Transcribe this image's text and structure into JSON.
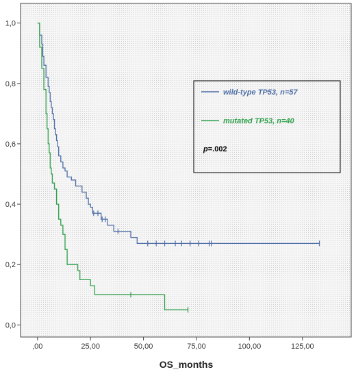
{
  "chart_data": {
    "type": "line",
    "subtype": "kaplan-meier",
    "xlabel": "OS_months",
    "ylabel": "",
    "xlim": [
      -8,
      148
    ],
    "ylim": [
      -0.04,
      1.065
    ],
    "x_ticks": [
      0,
      25,
      50,
      75,
      100,
      125
    ],
    "x_tick_labels": [
      ",00",
      "25,00",
      "50,00",
      "75,00",
      "100,00",
      "125,00"
    ],
    "y_ticks": [
      0,
      0.2,
      0.4,
      0.6,
      0.8,
      1.0
    ],
    "y_tick_labels": [
      "0,0",
      "0,2",
      "0,4",
      "0,6",
      "0,8",
      "1,0"
    ],
    "grid": false,
    "legend_position": "top-right",
    "pvalue_prefix": "p",
    "pvalue_suffix": "=.002",
    "series": [
      {
        "name_prefix": "wild-type ",
        "name_gene": "TP53",
        "name_suffix": ", n=57",
        "color": "#4f6fa8",
        "steps": [
          [
            0,
            1.0
          ],
          [
            1,
            0.96
          ],
          [
            2,
            0.93
          ],
          [
            2.5,
            0.89
          ],
          [
            3,
            0.86
          ],
          [
            4,
            0.82
          ],
          [
            5,
            0.79
          ],
          [
            5.5,
            0.77
          ],
          [
            6,
            0.74
          ],
          [
            6.5,
            0.72
          ],
          [
            7,
            0.7
          ],
          [
            7.5,
            0.68
          ],
          [
            8,
            0.65
          ],
          [
            8.5,
            0.63
          ],
          [
            9,
            0.61
          ],
          [
            9.5,
            0.59
          ],
          [
            10,
            0.56
          ],
          [
            11,
            0.54
          ],
          [
            12,
            0.52
          ],
          [
            13,
            0.51
          ],
          [
            14,
            0.49
          ],
          [
            16,
            0.48
          ],
          [
            18,
            0.46
          ],
          [
            21,
            0.44
          ],
          [
            23,
            0.42
          ],
          [
            24,
            0.4
          ],
          [
            25,
            0.39
          ],
          [
            26,
            0.37
          ],
          [
            30,
            0.35
          ],
          [
            33,
            0.33
          ],
          [
            36,
            0.31
          ],
          [
            44,
            0.29
          ],
          [
            47,
            0.27
          ],
          [
            133,
            0.27
          ]
        ],
        "censored": [
          [
            26.5,
            0.37
          ],
          [
            28.5,
            0.37
          ],
          [
            30.5,
            0.35
          ],
          [
            32,
            0.35
          ],
          [
            38,
            0.31
          ],
          [
            52,
            0.27
          ],
          [
            56,
            0.27
          ],
          [
            60,
            0.27
          ],
          [
            65,
            0.27
          ],
          [
            68,
            0.27
          ],
          [
            72,
            0.27
          ],
          [
            76,
            0.27
          ],
          [
            81,
            0.27
          ],
          [
            82,
            0.27
          ],
          [
            133,
            0.27
          ]
        ]
      },
      {
        "name_prefix": "mutated ",
        "name_gene": "TP53",
        "name_suffix": ", n=40",
        "color": "#2fa14a",
        "steps": [
          [
            0,
            1.0
          ],
          [
            1,
            0.92
          ],
          [
            2,
            0.85
          ],
          [
            3,
            0.78
          ],
          [
            4,
            0.7
          ],
          [
            4.5,
            0.65
          ],
          [
            5,
            0.6
          ],
          [
            5.5,
            0.57
          ],
          [
            6,
            0.52
          ],
          [
            6.5,
            0.5
          ],
          [
            7,
            0.47
          ],
          [
            8,
            0.45
          ],
          [
            9,
            0.4
          ],
          [
            10,
            0.35
          ],
          [
            11,
            0.33
          ],
          [
            12,
            0.3
          ],
          [
            13,
            0.25
          ],
          [
            14,
            0.2
          ],
          [
            19,
            0.18
          ],
          [
            20,
            0.15
          ],
          [
            25,
            0.13
          ],
          [
            27,
            0.1
          ],
          [
            60,
            0.05
          ],
          [
            71,
            0.05
          ]
        ],
        "censored": [
          [
            44,
            0.1
          ],
          [
            71,
            0.05
          ]
        ]
      }
    ]
  }
}
